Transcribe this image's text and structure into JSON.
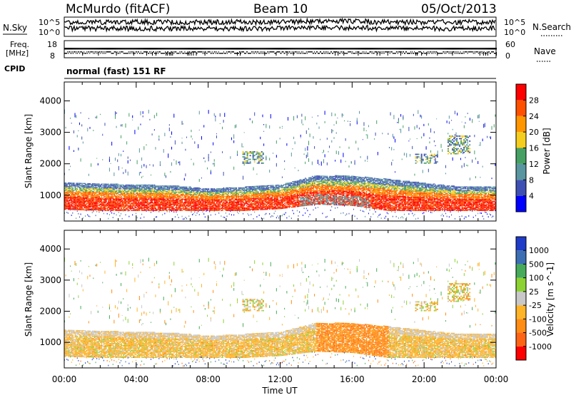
{
  "header": {
    "station": "McMurdo (fitACF)",
    "beam": "Beam 10",
    "date": "05/Oct/2013"
  },
  "noise_panel": {
    "left_label": "N.Sky",
    "right_label": "N.Search",
    "left_ticks": [
      "10^5",
      "10^0"
    ],
    "right_ticks": [
      "10^5",
      "10^0"
    ]
  },
  "freq_panel": {
    "left_label_line1": "Freq.",
    "left_label_line2": "[MHz]",
    "left_ticks": [
      "18",
      "8"
    ],
    "right_label": "Nave",
    "right_ticks": [
      "60",
      "0"
    ]
  },
  "cpid_panel": {
    "label": "CPID",
    "text": "normal (fast) 151 RF"
  },
  "chart_data": [
    {
      "type": "heatmap",
      "panel": "power",
      "ylabel": "Slant Range [km]",
      "ylim": [
        180,
        4600
      ],
      "xlim": [
        "00:00",
        "24:00"
      ],
      "yticks": [
        "1000",
        "2000",
        "3000",
        "4000"
      ],
      "colorbar": {
        "label": "Power [dB]",
        "ticks": [
          "4",
          "8",
          "12",
          "16",
          "20",
          "24",
          "28"
        ],
        "colors": [
          "#0000ff",
          "#3f50b4",
          "#5a96a0",
          "#46a064",
          "#f5cd1e",
          "#ff9600",
          "#ff5000",
          "#ff0000"
        ]
      },
      "main_band_km": [
        [
          0,
          600,
          1400
        ],
        [
          2,
          560,
          1360
        ],
        [
          4,
          560,
          1320
        ],
        [
          6,
          560,
          1300
        ],
        [
          8,
          560,
          1200
        ],
        [
          10,
          560,
          1250
        ],
        [
          12,
          620,
          1320
        ],
        [
          14,
          760,
          1620
        ],
        [
          16,
          720,
          1600
        ],
        [
          18,
          560,
          1500
        ],
        [
          20,
          560,
          1380
        ],
        [
          22,
          560,
          1260
        ],
        [
          24,
          560,
          1260
        ]
      ]
    },
    {
      "type": "heatmap",
      "panel": "velocity",
      "ylabel": "Slant Range [km]",
      "ylim": [
        180,
        4600
      ],
      "xlim": [
        "00:00",
        "24:00"
      ],
      "yticks": [
        "1000",
        "2000",
        "3000",
        "4000"
      ],
      "colorbar": {
        "label": "Velocity [m s^-1]",
        "ticks": [
          "1000",
          "500",
          "100",
          "25",
          "-25",
          "-100",
          "-500",
          "-1000"
        ],
        "colors": [
          "#1e3cc8",
          "#3c6eb4",
          "#46aa5a",
          "#8cd232",
          "#c8c8c8",
          "#ffb428",
          "#ff8c14",
          "#ff6414",
          "#ff0000"
        ]
      }
    }
  ],
  "x_axis": {
    "label": "Time UT",
    "ticks": [
      "00:00",
      "04:00",
      "08:00",
      "12:00",
      "16:00",
      "20:00",
      "00:00"
    ]
  }
}
